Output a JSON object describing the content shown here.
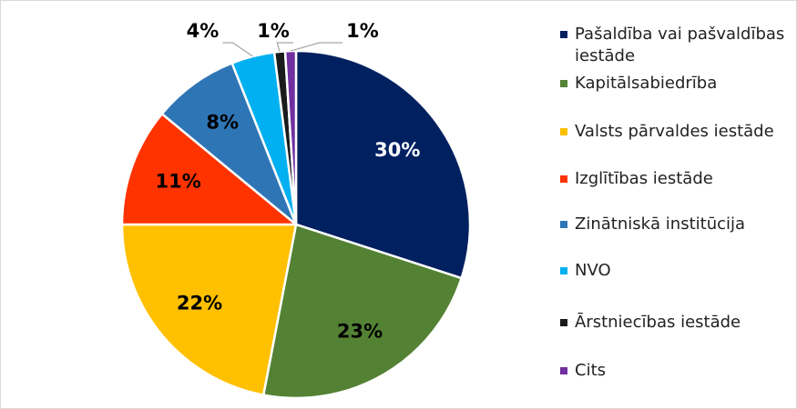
{
  "chart_data": {
    "type": "pie",
    "categories": [
      "Pašaldība vai pašvaldības iestāde",
      "Kapitālsabiedrība",
      "Valsts pārvaldes iestāde",
      "Izglītības iestāde",
      "Zinātniskā institūcija",
      "NVO",
      "Ārstniecības iestāde",
      "Cits"
    ],
    "values": [
      30,
      23,
      22,
      11,
      8,
      4,
      1,
      1
    ],
    "value_labels": [
      "30%",
      "23%",
      "22%",
      "11%",
      "8%",
      "4%",
      "1%",
      "1%"
    ],
    "colors": [
      "#002060",
      "#548235",
      "#FFC000",
      "#FF3300",
      "#2E75B6",
      "#00B0F0",
      "#1A1A1A",
      "#7030A0"
    ],
    "legend": "right"
  }
}
